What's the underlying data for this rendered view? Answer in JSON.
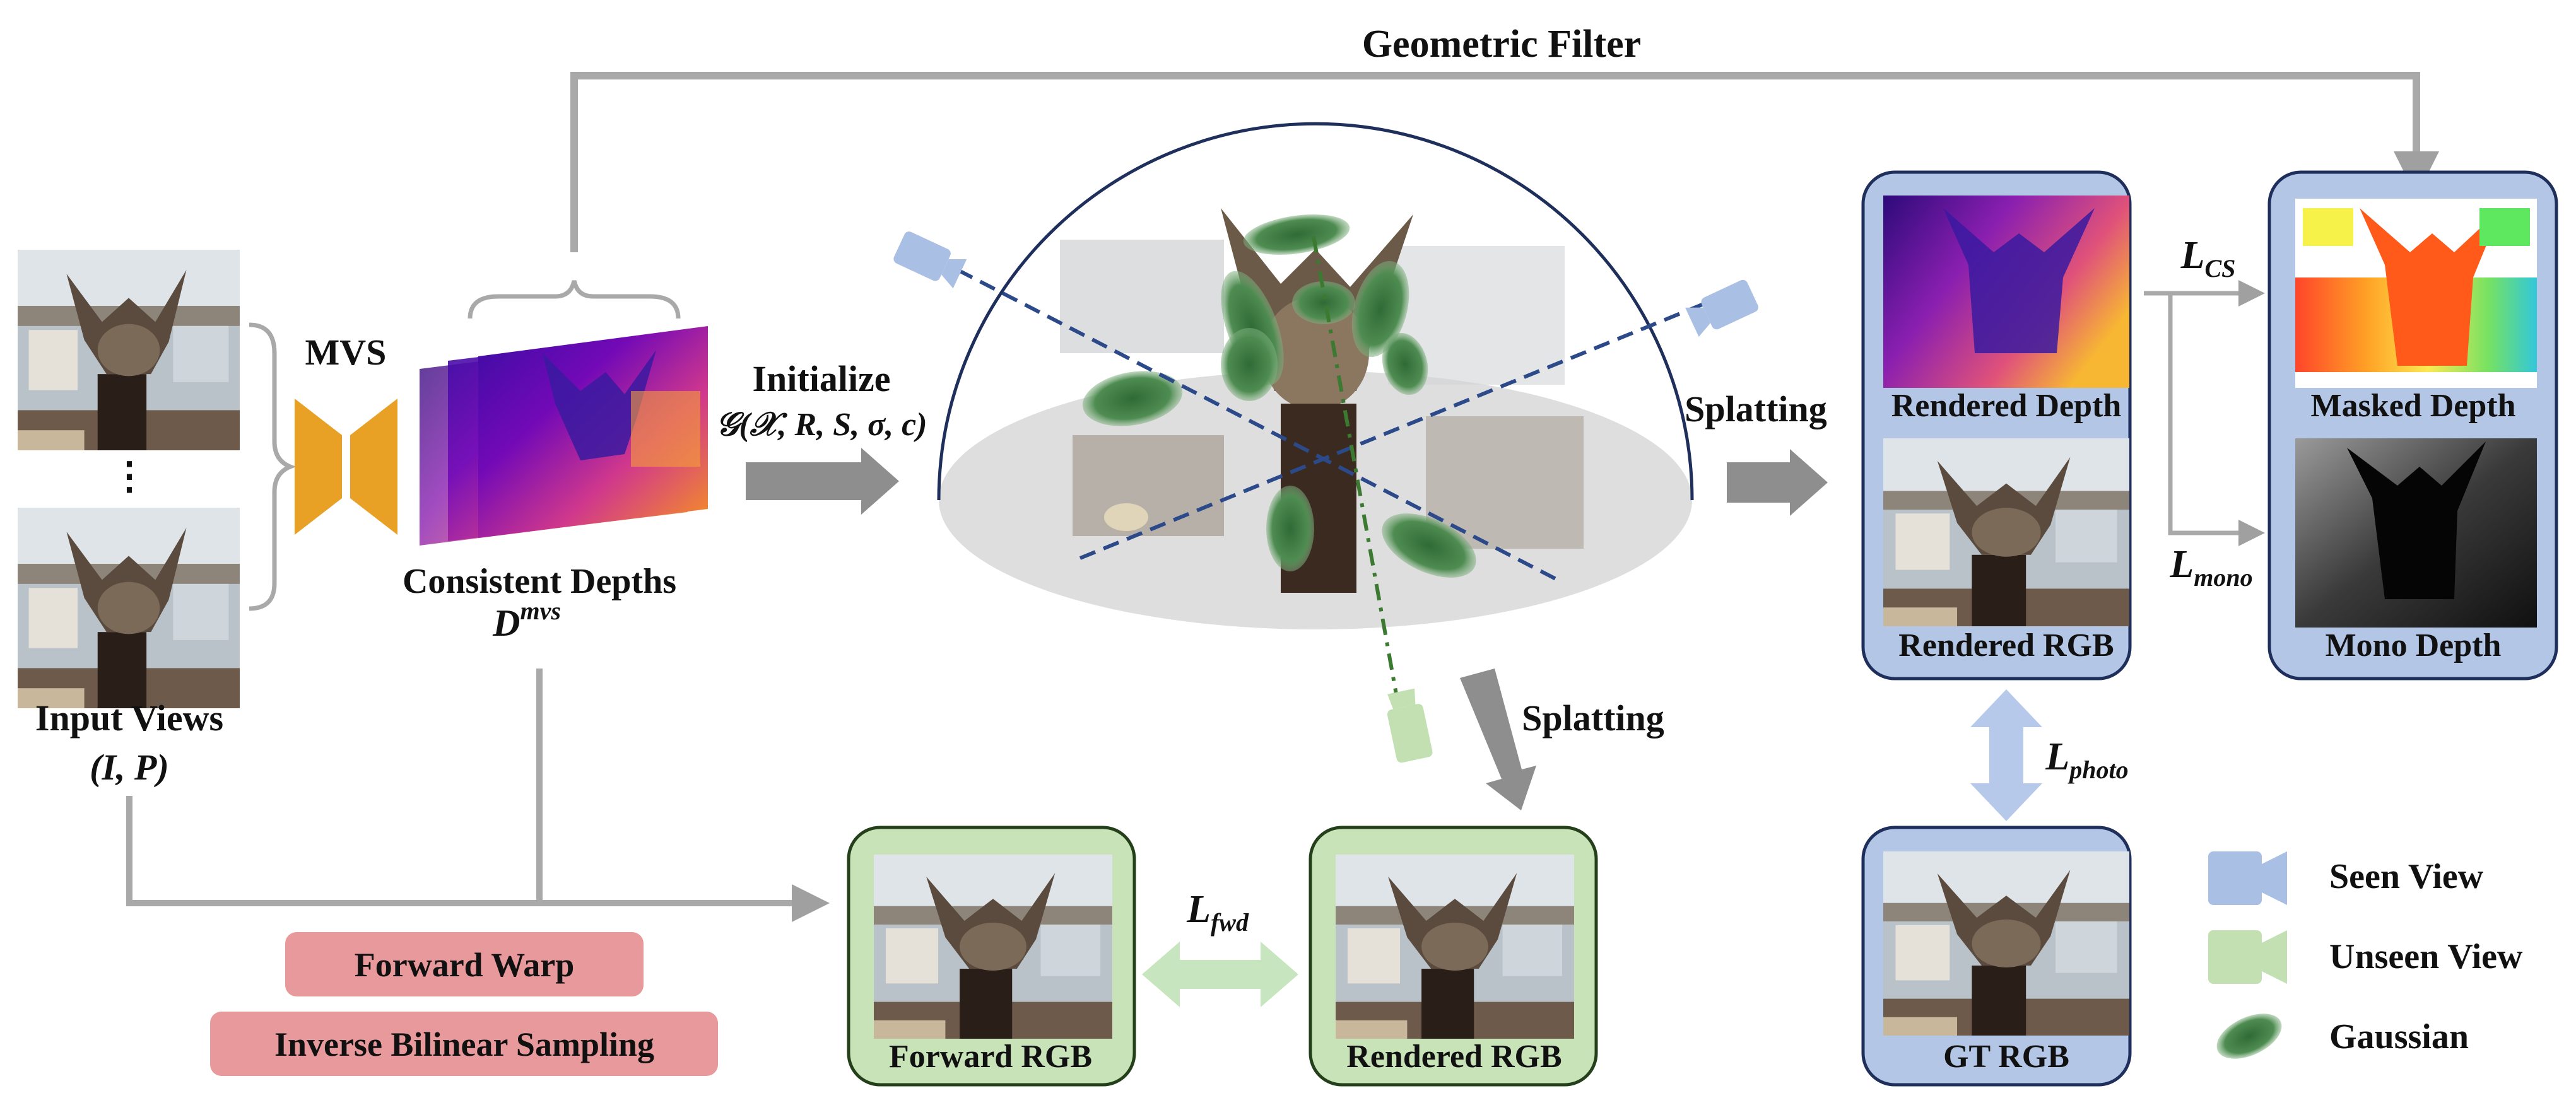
{
  "labels": {
    "geometric_filter": "Geometric Filter",
    "mvs": "MVS",
    "input_views": "Input Views",
    "input_views_math": "(I, P)",
    "consistent_depths": "Consistent Depths",
    "d_mvs": "D",
    "d_mvs_sup": "mvs",
    "initialize": "Initialize",
    "init_formula": "𝒢(𝒳, R, S, σ, c)",
    "splatting_right": "Splatting",
    "splatting_down": "Splatting",
    "rendered_depth": "Rendered Depth",
    "rendered_rgb_blue": "Rendered RGB",
    "masked_depth": "Masked Depth",
    "mono_depth": "Mono Depth",
    "gt_rgb": "GT RGB",
    "forward_rgb": "Forward RGB",
    "rendered_rgb_green": "Rendered RGB",
    "forward_warp": "Forward Warp",
    "inverse_bilinear": "Inverse Bilinear Sampling",
    "ellipsis": "⋮"
  },
  "losses": {
    "l_cs": {
      "main": "L",
      "sub": "CS"
    },
    "l_mono": {
      "main": "L",
      "sub": "mono"
    },
    "l_photo": {
      "main": "L",
      "sub": "photo"
    },
    "l_fwd": {
      "main": "L",
      "sub": "fwd"
    }
  },
  "legend": {
    "seen_view": "Seen View",
    "unseen_view": "Unseen View",
    "gaussian": "Gaussian"
  },
  "colors": {
    "blue_box_fill": "#b3c6e6",
    "blue_box_stroke": "#1e2f5c",
    "green_box_fill": "#c8e3b8",
    "green_box_stroke": "#24401a",
    "pink_button": "#e8999b",
    "mvs_orange": "#e8a025",
    "arrow_gray": "#8e8e8e",
    "light_blue_arrow": "#b7c9ea",
    "light_green_arrow": "#c7e6bf",
    "seen_camera": "#a9bfe4",
    "unseen_camera": "#c2e0b2",
    "gaussian_green": "#3e7c44"
  }
}
